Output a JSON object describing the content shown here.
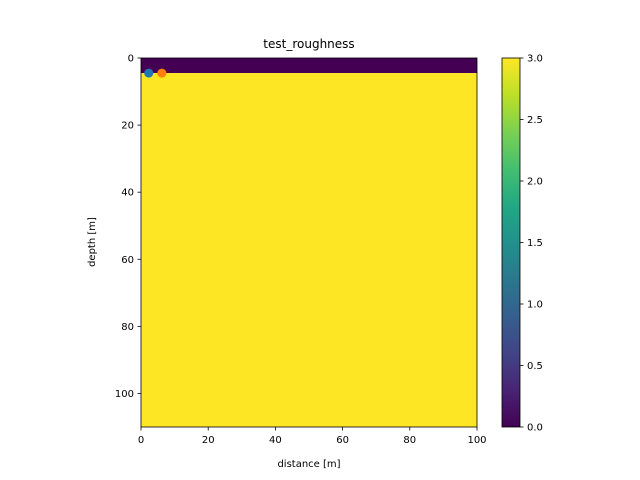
{
  "chart_data": {
    "type": "heatmap",
    "title": "test_roughness",
    "xlabel": "distance [m]",
    "ylabel": "depth [m]",
    "xlim": [
      0,
      100
    ],
    "ylim": [
      110,
      0
    ],
    "y_inverted": true,
    "grid": false,
    "xticks": [
      0,
      20,
      40,
      60,
      80,
      100
    ],
    "yticks": [
      0,
      20,
      40,
      60,
      80,
      100
    ],
    "regions": [
      {
        "x": [
          0,
          100
        ],
        "y": [
          0,
          4.5
        ],
        "value": 0.0
      },
      {
        "x": [
          0,
          100
        ],
        "y": [
          4.5,
          110
        ],
        "value": 3.0
      }
    ],
    "points": [
      {
        "x": 2.3,
        "y": 4.5,
        "color": "#1f77b4"
      },
      {
        "x": 6.2,
        "y": 4.5,
        "color": "#ff7f0e"
      }
    ],
    "colorbar": {
      "colormap": "viridis",
      "range": [
        0.0,
        3.0
      ],
      "ticks": [
        "0.0",
        "0.5",
        "1.0",
        "1.5",
        "2.0",
        "2.5",
        "3.0"
      ]
    }
  }
}
